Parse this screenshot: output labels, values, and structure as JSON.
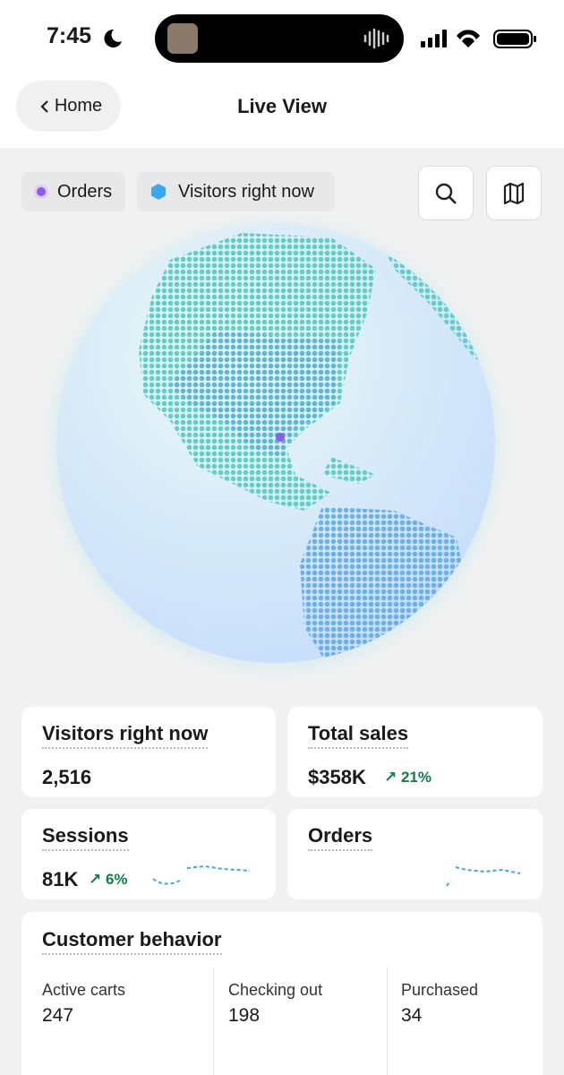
{
  "status_bar": {
    "time": "7:45"
  },
  "nav": {
    "back": "Home",
    "title": "Live View"
  },
  "legend": [
    {
      "label": "Orders"
    },
    {
      "label": "Visitors right now"
    }
  ],
  "cards": [
    {
      "title": "Visitors right now",
      "value": "2,516"
    },
    {
      "title": "Total sales",
      "value": "$358K",
      "change": "21%"
    },
    {
      "title": "Sessions",
      "value": "81K",
      "change": "6%"
    },
    {
      "title": "Orders"
    }
  ],
  "customer_behavior": {
    "title": "Customer behavior",
    "metrics": [
      {
        "label": "Active carts",
        "value": 247
      },
      {
        "label": "Checking out",
        "value": 198
      },
      {
        "label": "Purchased",
        "value": 34
      }
    ]
  }
}
